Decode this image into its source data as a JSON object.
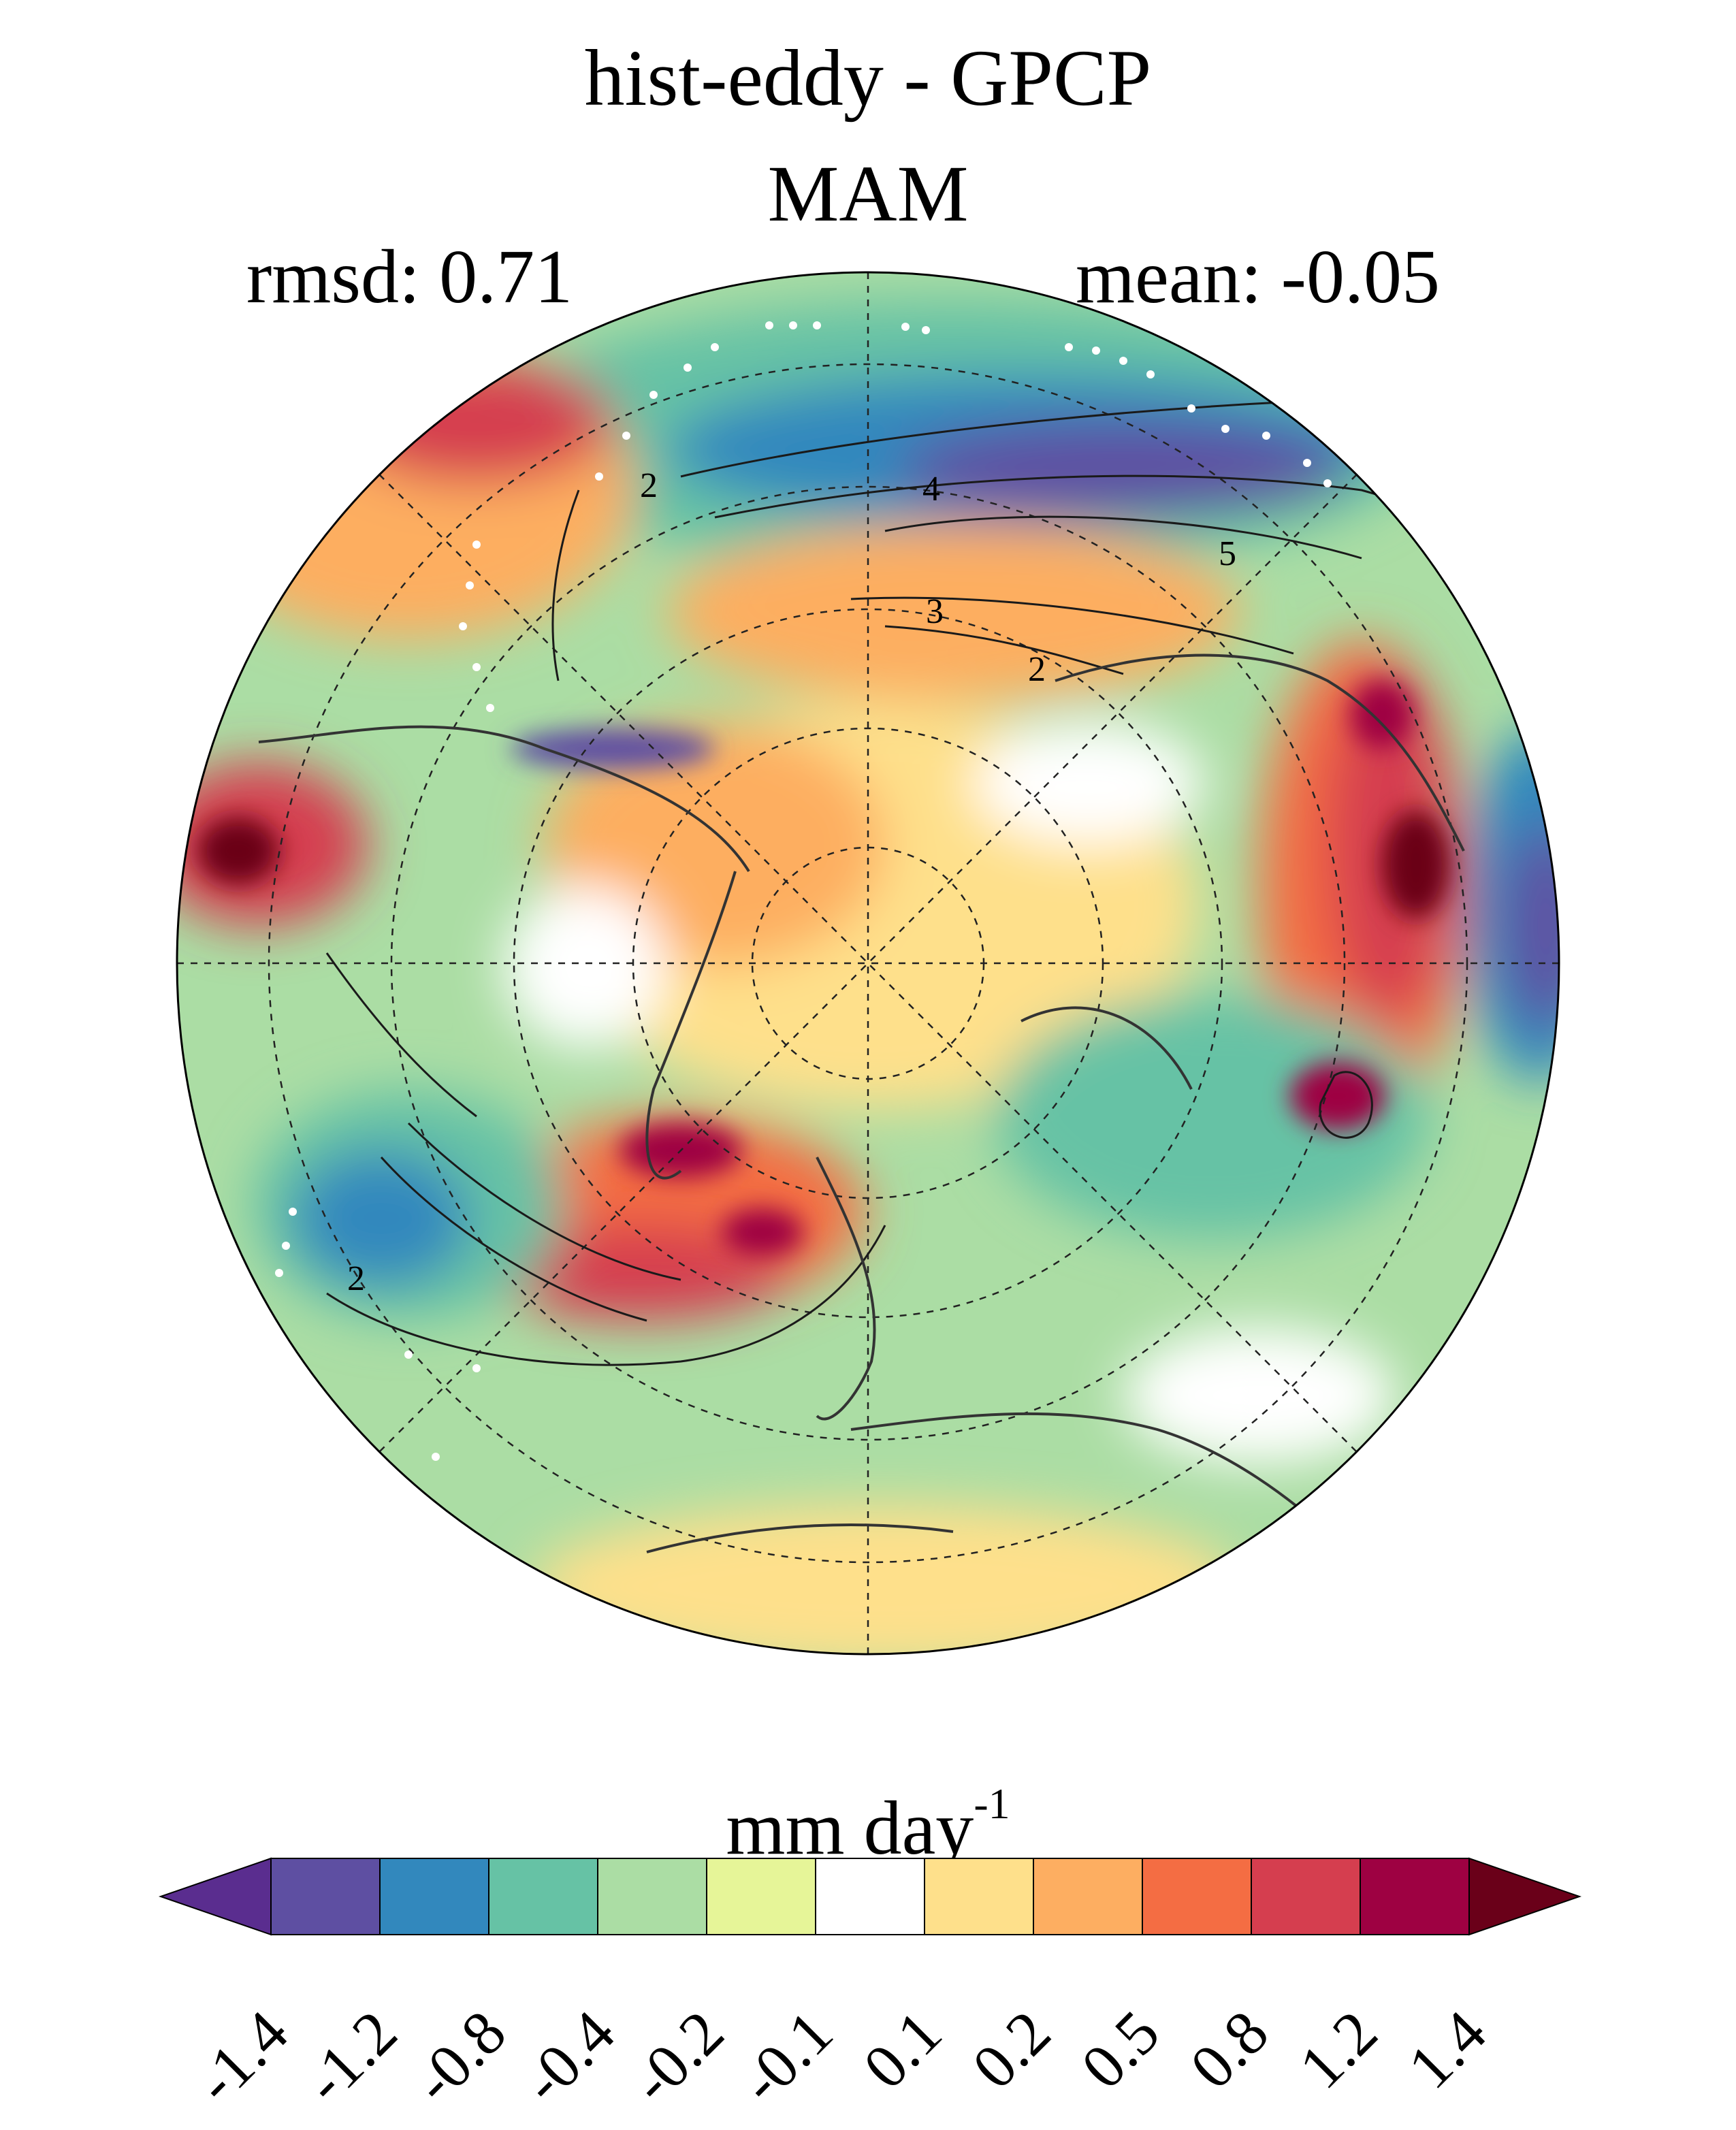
{
  "title": "hist-eddy - GPCP",
  "subtitle": "MAM",
  "stats": {
    "rmsd": "rmsd: 0.71",
    "mean": "mean: -0.05"
  },
  "colorbar": {
    "unit_base": "mm day",
    "unit_exp": "-1",
    "ticks": [
      "-1.4",
      "-1.2",
      "-0.8",
      "-0.4",
      "-0.2",
      "-0.1",
      "0.1",
      "0.2",
      "0.5",
      "0.8",
      "1.2",
      "1.4"
    ],
    "colors": [
      "#5a2d8f",
      "#5e4fa2",
      "#3288bd",
      "#66c2a5",
      "#abdda4",
      "#e6f598",
      "#ffffff",
      "#fee08b",
      "#fdae61",
      "#f46d43",
      "#d53e4f",
      "#9e0142",
      "#6a0019"
    ]
  },
  "contour_labels": [
    "2",
    "4",
    "3",
    "2",
    "5",
    "2"
  ]
}
